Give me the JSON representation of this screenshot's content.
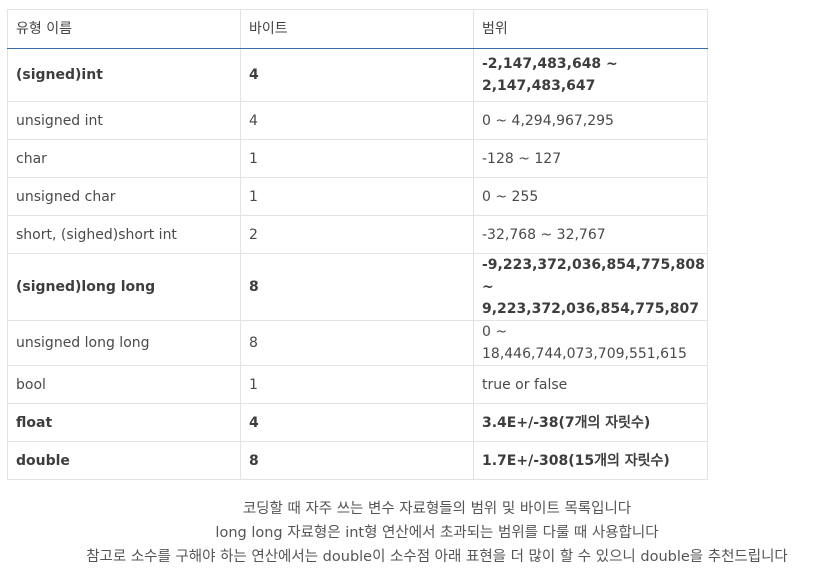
{
  "table": {
    "headers": [
      "유형 이름",
      "바이트",
      "범위"
    ],
    "rows": [
      {
        "type": "(signed)int",
        "bytes": "4",
        "range": "-2,147,483,648 ~ 2,147,483,647",
        "bold": true
      },
      {
        "type": "unsigned int",
        "bytes": "4",
        "range": "0 ~ 4,294,967,295",
        "bold": false
      },
      {
        "type": "char",
        "bytes": "1",
        "range": "-128 ~ 127",
        "bold": false
      },
      {
        "type": "unsigned char",
        "bytes": "1",
        "range": "0 ~ 255",
        "bold": false
      },
      {
        "type": "short, (sighed)short int",
        "bytes": "2",
        "range": "-32,768 ~ 32,767",
        "bold": false
      },
      {
        "type": "(signed)long long",
        "bytes": "8",
        "range": "-9,223,372,036,854,775,808 ~ 9,223,372,036,854,775,807",
        "bold": true
      },
      {
        "type": "unsigned long long",
        "bytes": "8",
        "range": "0 ~ 18,446,744,073,709,551,615",
        "bold": false
      },
      {
        "type": "bool",
        "bytes": "1",
        "range": "true or false",
        "bold": false
      },
      {
        "type": "float",
        "bytes": "4",
        "range": "3.4E+/-38(7개의 자릿수)",
        "bold": true
      },
      {
        "type": "double",
        "bytes": "8",
        "range": "1.7E+/-308(15개의 자릿수)",
        "bold": true
      }
    ]
  },
  "caption": {
    "line1": "코딩할 때 자주 쓰는 변수 자료형들의 범위 및 바이트 목록입니다",
    "line2": "long long 자료형은 int형 연산에서 초과되는 범위를 다룰 때 사용합니다",
    "line3": "참고로 소수를 구해야 하는 연산에서는 double이 소수점 아래 표현을 더 많이 할 수 있으니 double을 추천드립니다"
  }
}
